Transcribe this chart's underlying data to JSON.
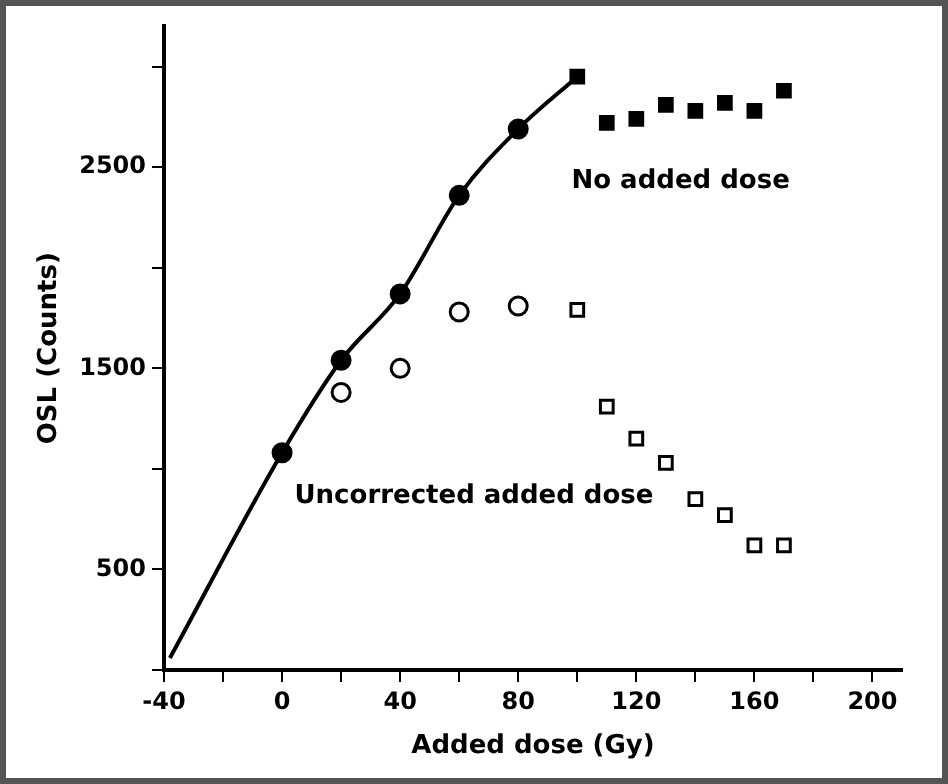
{
  "chart_data": {
    "type": "scatter",
    "xlabel": "Added dose (Gy)",
    "ylabel": "OSL (Counts)",
    "xlim": [
      -40,
      210
    ],
    "ylim": [
      0,
      3200
    ],
    "xticks": [
      -40,
      {
        "value": -20,
        "label": null
      },
      0,
      {
        "value": 20,
        "label": null
      },
      40,
      {
        "value": 60,
        "label": null
      },
      80,
      {
        "value": 100,
        "label": null
      },
      120,
      {
        "value": 140,
        "label": null
      },
      160,
      {
        "value": 180,
        "label": null
      },
      200
    ],
    "yticks": [
      {
        "value": 0,
        "label": null
      },
      500,
      {
        "value": 1000,
        "label": null
      },
      1500,
      {
        "value": 2000,
        "label": null
      },
      2500,
      {
        "value": 3000,
        "label": null
      }
    ],
    "grid": false,
    "legend": false,
    "series": [
      {
        "type": "line",
        "color": "#000000",
        "marker": "none",
        "x": [
          -38,
          0,
          20,
          40,
          60,
          80,
          100
        ],
        "values": [
          60,
          1080,
          1540,
          1870,
          2360,
          2690,
          2950
        ]
      },
      {
        "color": "#000000",
        "marker": "circle",
        "x": [
          0,
          20,
          40,
          60,
          80
        ],
        "values": [
          1080,
          1540,
          1870,
          2360,
          2690
        ]
      },
      {
        "color": "#000000",
        "marker": "square",
        "x": [
          100,
          110,
          120,
          130,
          140,
          150,
          160,
          170
        ],
        "values": [
          2950,
          2720,
          2740,
          2810,
          2780,
          2820,
          2780,
          2880
        ]
      },
      {
        "color": "#ffffff",
        "marker": "circle",
        "x": [
          20,
          40,
          60,
          80
        ],
        "values": [
          1380,
          1500,
          1780,
          1810
        ]
      },
      {
        "color": "#ffffff",
        "marker": "square",
        "x": [
          100,
          110,
          120,
          130,
          140,
          150,
          160,
          170
        ],
        "values": [
          1790,
          1310,
          1150,
          1030,
          850,
          770,
          620,
          620
        ]
      }
    ],
    "annotations": [
      "No added dose",
      "Uncorrected added dose"
    ]
  }
}
